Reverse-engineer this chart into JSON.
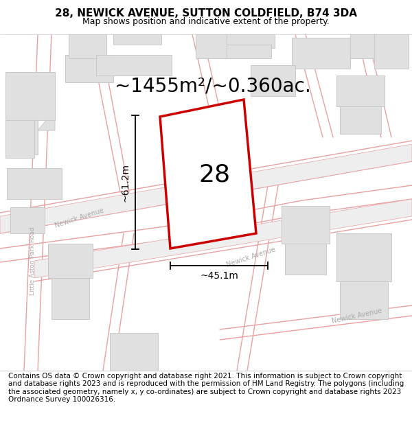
{
  "title_line1": "28, NEWICK AVENUE, SUTTON COLDFIELD, B74 3DA",
  "title_line2": "Map shows position and indicative extent of the property.",
  "area_text": "~1455m²/~0.360ac.",
  "dim_height": "~61.2m",
  "dim_width": "~45.1m",
  "plot_number": "28",
  "footer_text": "Contains OS data © Crown copyright and database right 2021. This information is subject to Crown copyright and database rights 2023 and is reproduced with the permission of HM Land Registry. The polygons (including the associated geometry, namely x, y co-ordinates) are subject to Crown copyright and database rights 2023 Ordnance Survey 100026316.",
  "map_bg": "#f7f7f7",
  "road_outline_color": "#e8a0a0",
  "road_fill_color": "#f5eded",
  "building_color": "#e0e0e0",
  "building_edge": "#c8c8c8",
  "plot_fill": "#ffffff",
  "plot_edge": "#cc0000",
  "title_fontsize": 11,
  "subtitle_fontsize": 9,
  "footer_fontsize": 7.5,
  "area_fontsize": 20,
  "dim_fontsize": 10,
  "plot_num_fontsize": 26,
  "road_label_color": "#aaaaaa",
  "road_label_size": 7
}
